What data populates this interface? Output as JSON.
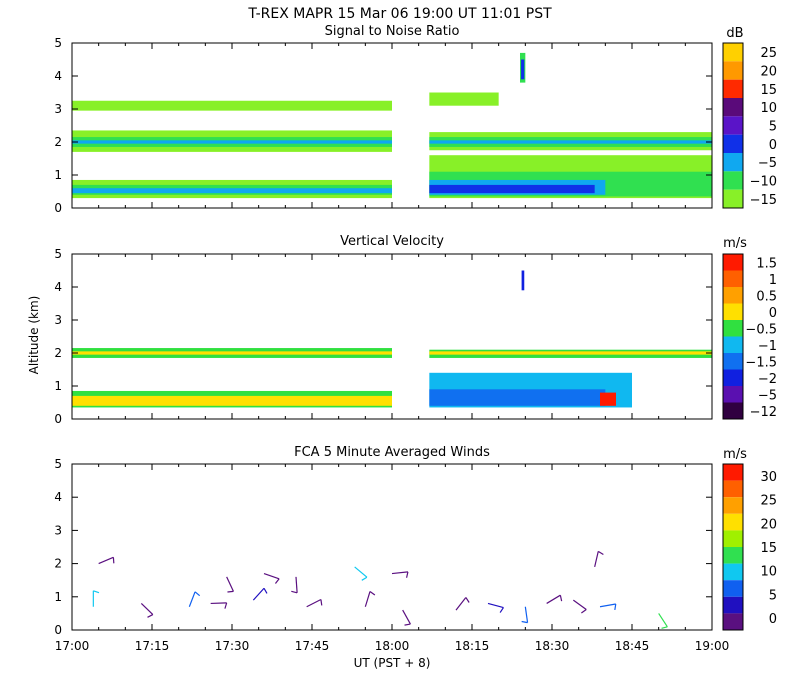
{
  "header": {
    "title": "T-REX   MAPR 15 Mar 06   19:00 UT   11:01   PST"
  },
  "xaxis": {
    "label": "UT  (PST + 8)",
    "ticks": [
      "17:00",
      "17:15",
      "17:30",
      "17:45",
      "18:00",
      "18:15",
      "18:30",
      "18:45",
      "19:00"
    ],
    "tick_minutes": [
      0,
      15,
      30,
      45,
      60,
      75,
      90,
      105,
      120
    ],
    "range_minutes": [
      0,
      120
    ]
  },
  "yaxis": {
    "label": "Altitude (km)",
    "ticks": [
      "0",
      "1",
      "2",
      "3",
      "4",
      "5"
    ],
    "range": [
      0,
      5
    ]
  },
  "chart_data": [
    {
      "type": "heatmap",
      "title": "Signal to Noise Ratio",
      "units": "dB",
      "colorbar": {
        "labels": [
          "25",
          "20",
          "15",
          "10",
          "5",
          "0",
          "−5",
          "−10",
          "−15"
        ],
        "colors": [
          "#ffd000",
          "#ff9900",
          "#ff2a00",
          "#5a0a7a",
          "#5a14c8",
          "#1030e8",
          "#10a8f0",
          "#30e050",
          "#88f028"
        ]
      },
      "layers": [
        {
          "t0": 0,
          "t1": 60,
          "z0": 0.3,
          "z1": 0.85,
          "color": "#88f028"
        },
        {
          "t0": 0,
          "t1": 60,
          "z0": 0.4,
          "z1": 0.7,
          "color": "#30e050"
        },
        {
          "t0": 0,
          "t1": 60,
          "z0": 0.45,
          "z1": 0.6,
          "color": "#10a8f0"
        },
        {
          "t0": 0,
          "t1": 60,
          "z0": 1.7,
          "z1": 2.35,
          "color": "#88f028"
        },
        {
          "t0": 0,
          "t1": 60,
          "z0": 1.85,
          "z1": 2.15,
          "color": "#30e050"
        },
        {
          "t0": 0,
          "t1": 60,
          "z0": 1.95,
          "z1": 2.05,
          "color": "#10a8f0"
        },
        {
          "t0": 0,
          "t1": 60,
          "z0": 2.95,
          "z1": 3.25,
          "color": "#88f028"
        },
        {
          "t0": 67,
          "t1": 120,
          "z0": 0.3,
          "z1": 1.6,
          "color": "#88f028"
        },
        {
          "t0": 67,
          "t1": 120,
          "z0": 0.35,
          "z1": 1.1,
          "color": "#30e050"
        },
        {
          "t0": 67,
          "t1": 100,
          "z0": 0.4,
          "z1": 0.85,
          "color": "#10a8f0"
        },
        {
          "t0": 67,
          "t1": 98,
          "z0": 0.45,
          "z1": 0.7,
          "color": "#1030e8"
        },
        {
          "t0": 67,
          "t1": 120,
          "z0": 1.75,
          "z1": 2.3,
          "color": "#88f028"
        },
        {
          "t0": 67,
          "t1": 120,
          "z0": 1.85,
          "z1": 2.15,
          "color": "#30e050"
        },
        {
          "t0": 67,
          "t1": 120,
          "z0": 1.95,
          "z1": 2.05,
          "color": "#10a8f0"
        },
        {
          "t0": 67,
          "t1": 80,
          "z0": 3.1,
          "z1": 3.5,
          "color": "#88f028"
        },
        {
          "t0": 84,
          "t1": 85,
          "z0": 3.8,
          "z1": 4.7,
          "color": "#30e050"
        },
        {
          "t0": 84.2,
          "t1": 84.8,
          "z0": 3.9,
          "z1": 4.5,
          "color": "#1030e8"
        }
      ]
    },
    {
      "type": "heatmap",
      "title": "Vertical Velocity",
      "units": "m/s",
      "colorbar": {
        "labels": [
          "1.5",
          "1",
          "0.5",
          "0",
          "−0.5",
          "−1",
          "−1.5",
          "−2",
          "−5",
          "−12"
        ],
        "colors": [
          "#ff1a00",
          "#ff6000",
          "#ffa000",
          "#ffe000",
          "#30e040",
          "#10b8f0",
          "#1070f0",
          "#1020e0",
          "#5a10b0",
          "#300040"
        ]
      },
      "layers": [
        {
          "t0": 0,
          "t1": 60,
          "z0": 0.35,
          "z1": 0.85,
          "color": "#30e040"
        },
        {
          "t0": 0,
          "t1": 60,
          "z0": 0.4,
          "z1": 0.7,
          "color": "#ffe000"
        },
        {
          "t0": 0,
          "t1": 60,
          "z0": 1.85,
          "z1": 2.15,
          "color": "#30e040"
        },
        {
          "t0": 0,
          "t1": 60,
          "z0": 1.95,
          "z1": 2.05,
          "color": "#ffe000"
        },
        {
          "t0": 67,
          "t1": 105,
          "z0": 0.35,
          "z1": 1.4,
          "color": "#10b8f0"
        },
        {
          "t0": 67,
          "t1": 100,
          "z0": 0.4,
          "z1": 0.9,
          "color": "#1070f0"
        },
        {
          "t0": 67,
          "t1": 120,
          "z0": 1.85,
          "z1": 2.1,
          "color": "#30e040"
        },
        {
          "t0": 67,
          "t1": 120,
          "z0": 1.95,
          "z1": 2.05,
          "color": "#ffe000"
        },
        {
          "t0": 99,
          "t1": 102,
          "z0": 0.4,
          "z1": 0.8,
          "color": "#ff1a00"
        },
        {
          "t0": 84.3,
          "t1": 84.8,
          "z0": 3.9,
          "z1": 4.5,
          "color": "#1020e0"
        }
      ]
    },
    {
      "type": "barbs",
      "title": "FCA 5 Minute Averaged Winds",
      "units": "m/s",
      "colorbar": {
        "labels": [
          "30",
          "25",
          "20",
          "15",
          "10",
          "5",
          "0"
        ],
        "colors": [
          "#ff1a00",
          "#ff6000",
          "#ffa000",
          "#ffe000",
          "#a0f000",
          "#30e050",
          "#10c8f0",
          "#1060f0",
          "#2010c0",
          "#5a1080"
        ]
      },
      "barbs": [
        {
          "t": 4,
          "z": 0.7,
          "color": "#10c8f0"
        },
        {
          "t": 5,
          "z": 2.0,
          "color": "#5a1080"
        },
        {
          "t": 13,
          "z": 0.8,
          "color": "#5a1080"
        },
        {
          "t": 22,
          "z": 0.7,
          "color": "#1060f0"
        },
        {
          "t": 26,
          "z": 0.8,
          "color": "#5a1080"
        },
        {
          "t": 29,
          "z": 1.6,
          "color": "#5a1080"
        },
        {
          "t": 34,
          "z": 0.9,
          "color": "#2010c0"
        },
        {
          "t": 36,
          "z": 1.7,
          "color": "#5a1080"
        },
        {
          "t": 42,
          "z": 1.6,
          "color": "#5a1080"
        },
        {
          "t": 44,
          "z": 0.7,
          "color": "#5a1080"
        },
        {
          "t": 53,
          "z": 1.9,
          "color": "#10c8f0"
        },
        {
          "t": 55,
          "z": 0.7,
          "color": "#5a1080"
        },
        {
          "t": 60,
          "z": 1.7,
          "color": "#5a1080"
        },
        {
          "t": 62,
          "z": 0.6,
          "color": "#5a1080"
        },
        {
          "t": 72,
          "z": 0.6,
          "color": "#5a1080"
        },
        {
          "t": 78,
          "z": 0.8,
          "color": "#2010c0"
        },
        {
          "t": 85,
          "z": 0.7,
          "color": "#1060f0"
        },
        {
          "t": 89,
          "z": 0.8,
          "color": "#5a1080"
        },
        {
          "t": 94,
          "z": 0.9,
          "color": "#5a1080"
        },
        {
          "t": 98,
          "z": 1.9,
          "color": "#5a1080"
        },
        {
          "t": 99,
          "z": 0.7,
          "color": "#1060f0"
        },
        {
          "t": 110,
          "z": 0.5,
          "color": "#30e050"
        }
      ]
    }
  ]
}
